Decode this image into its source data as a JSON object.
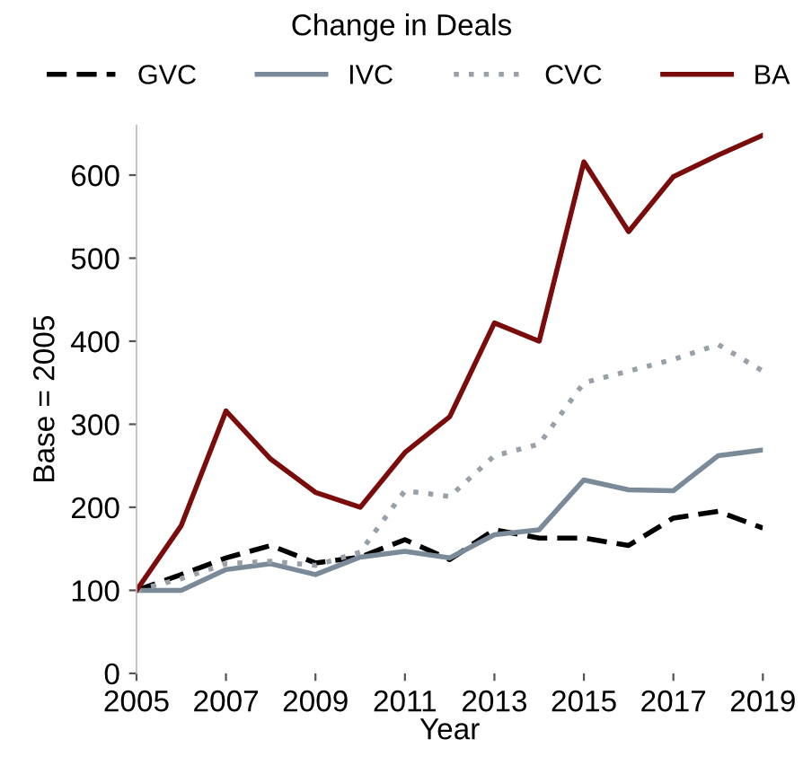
{
  "chart_data": {
    "type": "line",
    "title": "Change in Deals",
    "xlabel": "Year",
    "ylabel": "Base = 2005",
    "x": [
      2005,
      2006,
      2007,
      2008,
      2009,
      2010,
      2011,
      2012,
      2013,
      2014,
      2015,
      2016,
      2017,
      2018,
      2019
    ],
    "series": [
      {
        "name": "GVC",
        "color": "#000000",
        "line_style": "dashed",
        "values": [
          100,
          119,
          139,
          154,
          133,
          140,
          161,
          137,
          173,
          163,
          163,
          154,
          187,
          195,
          175
        ]
      },
      {
        "name": "IVC",
        "color": "#7a8a99",
        "line_style": "solid",
        "values": [
          100,
          100,
          125,
          132,
          119,
          140,
          147,
          139,
          167,
          173,
          233,
          221,
          220,
          262,
          269
        ]
      },
      {
        "name": "CVC",
        "color": "#9aa0a8",
        "line_style": "dotted",
        "values": [
          100,
          114,
          132,
          135,
          130,
          146,
          220,
          213,
          262,
          276,
          350,
          364,
          378,
          396,
          364
        ]
      },
      {
        "name": "BA",
        "color": "#7b0c0c",
        "line_style": "solid",
        "values": [
          100,
          178,
          316,
          258,
          218,
          200,
          266,
          309,
          422,
          400,
          616,
          532,
          598,
          624,
          648
        ]
      }
    ],
    "xlim": [
      2005,
      2019
    ],
    "xticks": [
      2005,
      2007,
      2009,
      2011,
      2013,
      2015,
      2017,
      2019
    ],
    "ylim": [
      0,
      660
    ],
    "yticks": [
      0,
      100,
      200,
      300,
      400,
      500,
      600
    ],
    "legend": "top",
    "grid": false,
    "marker": "none"
  }
}
